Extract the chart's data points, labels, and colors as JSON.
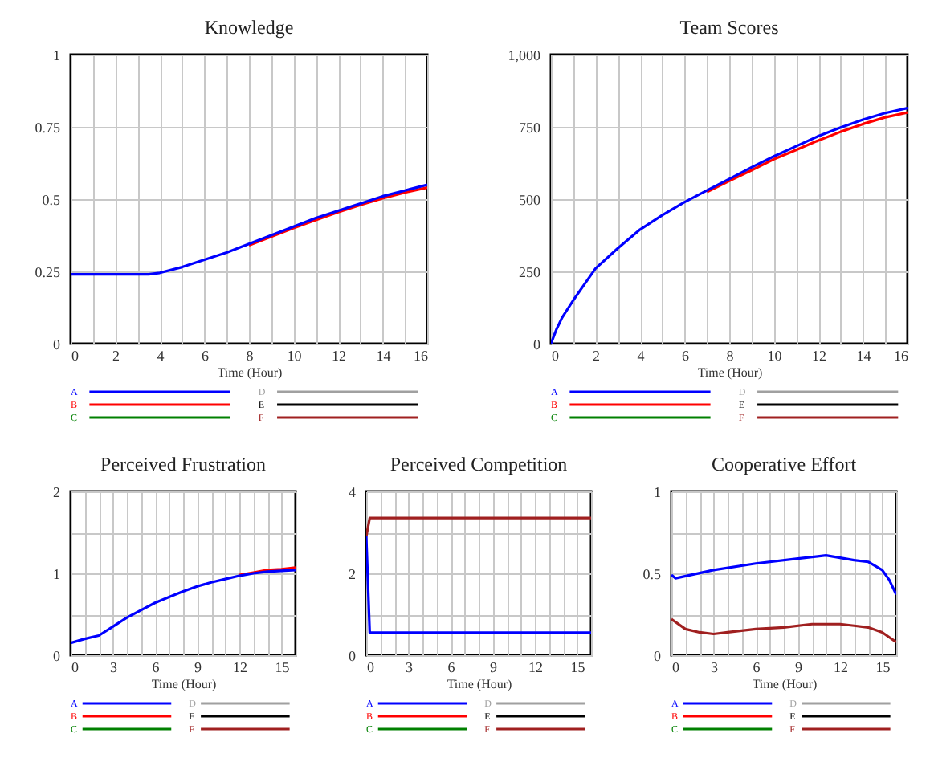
{
  "chart_data": [
    {
      "type": "line",
      "title": "Knowledge",
      "xlabel": "Time (Hour)",
      "legend": "bottom",
      "grid": true,
      "xlim": [
        0,
        16
      ],
      "ylim": [
        0,
        1
      ],
      "xticks": [
        0,
        {
          "value": 1,
          "label": null
        },
        2,
        {
          "value": 3,
          "label": null
        },
        4,
        {
          "value": 5,
          "label": null
        },
        6,
        {
          "value": 7,
          "label": null
        },
        8,
        {
          "value": 9,
          "label": null
        },
        10,
        {
          "value": 11,
          "label": null
        },
        12,
        {
          "value": 13,
          "label": null
        },
        14,
        {
          "value": 15,
          "label": null
        },
        16
      ],
      "yticks": [
        0,
        0.25,
        0.5,
        0.75,
        1
      ],
      "series": [
        {
          "name": "A",
          "color": "#0000ff",
          "x": [
            0,
            1,
            2,
            3,
            3.5,
            4,
            5,
            6,
            7,
            8,
            9,
            10,
            11,
            12,
            13,
            14,
            15,
            16
          ],
          "values": [
            0.24,
            0.24,
            0.24,
            0.24,
            0.24,
            0.245,
            0.265,
            0.29,
            0.315,
            0.345,
            0.375,
            0.405,
            0.435,
            0.46,
            0.485,
            0.51,
            0.53,
            0.55
          ]
        },
        {
          "name": "B",
          "color": "#ff0000",
          "x": [
            8,
            9,
            10,
            11,
            12,
            13,
            14,
            15,
            16
          ],
          "values": [
            0.34,
            0.37,
            0.4,
            0.428,
            0.455,
            0.48,
            0.503,
            0.523,
            0.54
          ]
        },
        {
          "name": "C",
          "color": "#008000"
        },
        {
          "name": "D",
          "color": "#a0a0a0"
        },
        {
          "name": "E",
          "color": "#000000"
        },
        {
          "name": "F",
          "color": "#a02020"
        }
      ]
    },
    {
      "type": "line",
      "title": "Team Scores",
      "xlabel": "Time (Hour)",
      "legend": "bottom",
      "grid": true,
      "xlim": [
        0,
        16
      ],
      "ylim": [
        0,
        1000
      ],
      "xticks": [
        0,
        {
          "value": 1,
          "label": null
        },
        2,
        {
          "value": 3,
          "label": null
        },
        4,
        {
          "value": 5,
          "label": null
        },
        6,
        {
          "value": 7,
          "label": null
        },
        8,
        {
          "value": 9,
          "label": null
        },
        10,
        {
          "value": 11,
          "label": null
        },
        12,
        {
          "value": 13,
          "label": null
        },
        14,
        {
          "value": 15,
          "label": null
        },
        16
      ],
      "yticks": [
        0,
        250,
        500,
        750,
        {
          "value": 1000,
          "label": "1,000"
        }
      ],
      "series": [
        {
          "name": "A",
          "color": "#0000ff",
          "x": [
            0,
            0.25,
            0.5,
            1,
            1.5,
            2,
            3,
            4,
            5,
            6,
            7,
            8,
            9,
            10,
            11,
            12,
            13,
            14,
            15,
            16
          ],
          "values": [
            0,
            50,
            90,
            150,
            205,
            260,
            330,
            395,
            445,
            490,
            530,
            570,
            610,
            648,
            683,
            718,
            748,
            775,
            798,
            815
          ]
        },
        {
          "name": "B",
          "color": "#ff0000",
          "x": [
            7,
            8,
            9,
            10,
            11,
            12,
            13,
            14,
            15,
            16
          ],
          "values": [
            525,
            563,
            600,
            638,
            670,
            703,
            733,
            760,
            783,
            800
          ]
        },
        {
          "name": "C",
          "color": "#008000"
        },
        {
          "name": "D",
          "color": "#a0a0a0"
        },
        {
          "name": "E",
          "color": "#000000"
        },
        {
          "name": "F",
          "color": "#a02020"
        }
      ]
    },
    {
      "type": "line",
      "title": "Perceived Frustration",
      "xlabel": "Time (Hour)",
      "legend": "bottom",
      "grid": true,
      "xlim": [
        0,
        16
      ],
      "ylim": [
        0,
        2
      ],
      "xticks": [
        0,
        {
          "value": 1,
          "label": null
        },
        {
          "value": 2,
          "label": null
        },
        3,
        {
          "value": 4,
          "label": null
        },
        {
          "value": 5,
          "label": null
        },
        6,
        {
          "value": 7,
          "label": null
        },
        {
          "value": 8,
          "label": null
        },
        9,
        {
          "value": 10,
          "label": null
        },
        {
          "value": 11,
          "label": null
        },
        12,
        {
          "value": 13,
          "label": null
        },
        {
          "value": 14,
          "label": null
        },
        15,
        {
          "value": 16,
          "label": null
        }
      ],
      "yticks": [
        0,
        {
          "value": 0.5,
          "label": null
        },
        1,
        {
          "value": 1.5,
          "label": null
        },
        2
      ],
      "series": [
        {
          "name": "A",
          "color": "#0000ff",
          "x": [
            0,
            1,
            2,
            3,
            4,
            5,
            6,
            7,
            8,
            9,
            10,
            11,
            12,
            13,
            14,
            15,
            16
          ],
          "values": [
            0.15,
            0.2,
            0.24,
            0.35,
            0.46,
            0.55,
            0.64,
            0.71,
            0.78,
            0.84,
            0.89,
            0.93,
            0.97,
            1.0,
            1.02,
            1.03,
            1.04
          ]
        },
        {
          "name": "B",
          "color": "#ff0000",
          "x": [
            12,
            13,
            14,
            15,
            16
          ],
          "values": [
            0.98,
            1.01,
            1.04,
            1.05,
            1.07
          ]
        },
        {
          "name": "C",
          "color": "#008000"
        },
        {
          "name": "D",
          "color": "#a0a0a0"
        },
        {
          "name": "E",
          "color": "#000000"
        },
        {
          "name": "F",
          "color": "#a02020"
        }
      ]
    },
    {
      "type": "line",
      "title": "Perceived Competition",
      "xlabel": "Time (Hour)",
      "legend": "bottom",
      "grid": true,
      "xlim": [
        0,
        16
      ],
      "ylim": [
        0,
        4
      ],
      "xticks": [
        0,
        {
          "value": 1,
          "label": null
        },
        {
          "value": 2,
          "label": null
        },
        3,
        {
          "value": 4,
          "label": null
        },
        {
          "value": 5,
          "label": null
        },
        6,
        {
          "value": 7,
          "label": null
        },
        {
          "value": 8,
          "label": null
        },
        9,
        {
          "value": 10,
          "label": null
        },
        {
          "value": 11,
          "label": null
        },
        12,
        {
          "value": 13,
          "label": null
        },
        {
          "value": 14,
          "label": null
        },
        15,
        {
          "value": 16,
          "label": null
        }
      ],
      "yticks": [
        0,
        {
          "value": 1,
          "label": null
        },
        2,
        {
          "value": 3,
          "label": null
        },
        4
      ],
      "series": [
        {
          "name": "A",
          "color": "#0000ff",
          "x": [
            0,
            0.25,
            16
          ],
          "values": [
            2.9,
            0.55,
            0.55
          ]
        },
        {
          "name": "B",
          "color": "#ff0000"
        },
        {
          "name": "C",
          "color": "#008000"
        },
        {
          "name": "D",
          "color": "#a0a0a0"
        },
        {
          "name": "E",
          "color": "#000000"
        },
        {
          "name": "F",
          "color": "#a02020",
          "x": [
            0,
            0.25,
            16
          ],
          "values": [
            2.9,
            3.35,
            3.35
          ]
        }
      ]
    },
    {
      "type": "line",
      "title": "Cooperative Effort",
      "xlabel": "Time (Hour)",
      "legend": "bottom",
      "grid": true,
      "xlim": [
        0,
        16
      ],
      "ylim": [
        0,
        1
      ],
      "xticks": [
        0,
        {
          "value": 1,
          "label": null
        },
        {
          "value": 2,
          "label": null
        },
        3,
        {
          "value": 4,
          "label": null
        },
        {
          "value": 5,
          "label": null
        },
        6,
        {
          "value": 7,
          "label": null
        },
        {
          "value": 8,
          "label": null
        },
        9,
        {
          "value": 10,
          "label": null
        },
        {
          "value": 11,
          "label": null
        },
        12,
        {
          "value": 13,
          "label": null
        },
        {
          "value": 14,
          "label": null
        },
        15,
        {
          "value": 16,
          "label": null
        }
      ],
      "yticks": [
        0,
        {
          "value": 0.25,
          "label": null
        },
        0.5,
        {
          "value": 0.75,
          "label": null
        },
        1
      ],
      "series": [
        {
          "name": "A",
          "color": "#0000ff",
          "x": [
            0,
            0.3,
            3,
            6,
            9,
            11,
            13,
            14,
            15,
            15.5,
            16
          ],
          "values": [
            0.49,
            0.47,
            0.52,
            0.56,
            0.59,
            0.61,
            0.58,
            0.57,
            0.52,
            0.46,
            0.37
          ]
        },
        {
          "name": "B",
          "color": "#ff0000"
        },
        {
          "name": "C",
          "color": "#008000"
        },
        {
          "name": "D",
          "color": "#a0a0a0"
        },
        {
          "name": "E",
          "color": "#000000"
        },
        {
          "name": "F",
          "color": "#a02020",
          "x": [
            0,
            1,
            2,
            3,
            4,
            6,
            8,
            10,
            12,
            13,
            14,
            15,
            16
          ],
          "values": [
            0.22,
            0.16,
            0.14,
            0.13,
            0.14,
            0.16,
            0.17,
            0.19,
            0.19,
            0.18,
            0.17,
            0.14,
            0.08
          ]
        }
      ]
    }
  ]
}
